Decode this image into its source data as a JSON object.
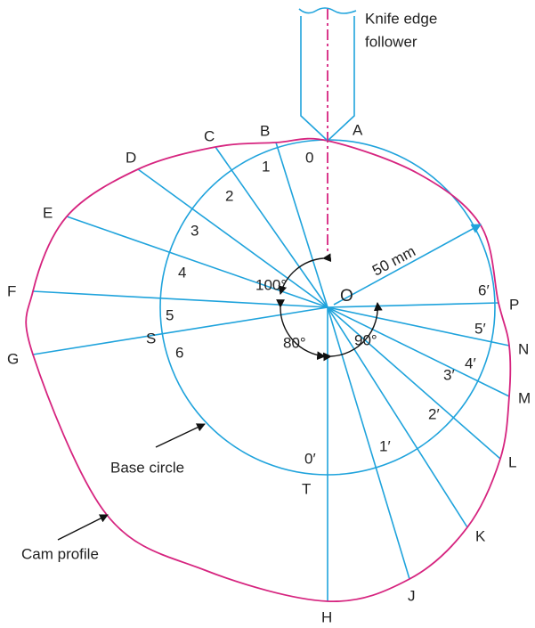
{
  "follower_label": [
    "Knife edge",
    "follower"
  ],
  "profile_points": [
    "A",
    "B",
    "C",
    "D",
    "E",
    "F",
    "G",
    "H",
    "J",
    "K",
    "L",
    "M",
    "N",
    "P"
  ],
  "base_points": [
    "0",
    "1",
    "2",
    "3",
    "4",
    "5",
    "6"
  ],
  "return_points": [
    "0′",
    "1′",
    "2′",
    "3′",
    "4′",
    "5′",
    "6′"
  ],
  "centre": "O",
  "radius_label": "50 mm",
  "angles": [
    "100°",
    "80°",
    "90°"
  ],
  "other_points": [
    "S",
    "T"
  ],
  "captions": {
    "base_circle": "Base circle",
    "cam_profile": "Cam profile"
  }
}
